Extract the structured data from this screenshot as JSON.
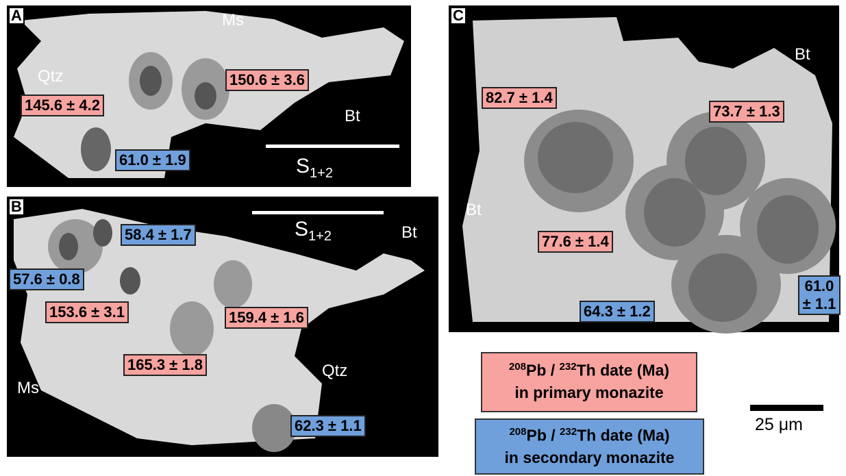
{
  "panels": [
    {
      "label": "A",
      "minerals": [
        "Ms",
        "Qtz",
        "Bt"
      ],
      "foliation": {
        "symbol": "S",
        "subscript": "1+2"
      },
      "dates": [
        {
          "text": "150.6 ± 3.6",
          "color": "#f7a3a0"
        },
        {
          "text": "145.6 ± 4.2",
          "color": "#f7a3a0"
        },
        {
          "text": "61.0 ± 1.9",
          "color": "#6fa0dc"
        }
      ]
    },
    {
      "label": "B",
      "minerals": [
        "Bt",
        "Ms",
        "Qtz"
      ],
      "foliation": {
        "symbol": "S",
        "subscript": "1+2"
      },
      "dates": [
        {
          "text": "58.4 ± 1.7",
          "color": "#6fa0dc"
        },
        {
          "text": "57.6 ± 0.8",
          "color": "#6fa0dc"
        },
        {
          "text": "153.6 ± 3.1",
          "color": "#f7a3a0"
        },
        {
          "text": "159.4 ± 1.6",
          "color": "#f7a3a0"
        },
        {
          "text": "165.3 ± 1.8",
          "color": "#f7a3a0"
        },
        {
          "text": "62.3 ± 1.1",
          "color": "#6fa0dc"
        }
      ]
    },
    {
      "label": "C",
      "minerals": [
        "Bt",
        "Bt"
      ],
      "dates": [
        {
          "text": "82.7 ± 1.4",
          "color": "#f7a3a0"
        },
        {
          "text": "73.7 ± 1.3",
          "color": "#f7a3a0"
        },
        {
          "text": "77.6 ± 1.4",
          "color": "#f7a3a0"
        },
        {
          "text": "64.3 ± 1.2",
          "color": "#6fa0dc"
        },
        {
          "text": "61.0 ± 1.1",
          "color": "#6fa0dc"
        }
      ]
    }
  ],
  "legend": [
    {
      "mass_a": "208",
      "element_a": "Pb / ",
      "mass_b": "232",
      "element_b": "Th date (Ma)",
      "line2": "in primary monazite",
      "color": "#f7a3a0"
    },
    {
      "mass_a": "208",
      "element_a": "Pb / ",
      "mass_b": "232",
      "element_b": "Th date (Ma)",
      "line2": "in secondary monazite",
      "color": "#6fa0dc"
    }
  ],
  "scale_bar": {
    "label": "25 μm"
  }
}
